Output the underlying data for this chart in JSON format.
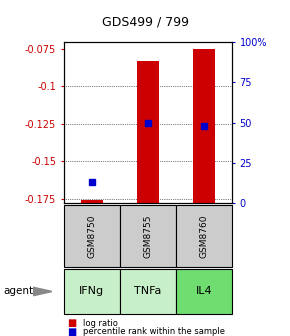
{
  "title": "GDS499 / 799",
  "samples": [
    "GSM8750",
    "GSM8755",
    "GSM8760"
  ],
  "agents": [
    "IFNg",
    "TNFa",
    "IL4"
  ],
  "log_ratios": [
    -0.1755,
    -0.083,
    -0.075
  ],
  "percentile_ranks": [
    13,
    50,
    48
  ],
  "ylim_left": [
    -0.178,
    -0.0705
  ],
  "ylim_right": [
    0,
    100
  ],
  "yticks_left": [
    -0.175,
    -0.15,
    -0.125,
    -0.1,
    -0.075
  ],
  "yticks_right": [
    0,
    25,
    50,
    75,
    100
  ],
  "bar_color": "#cc0000",
  "dot_color": "#0000cc",
  "bar_width": 0.4,
  "sample_box_color": "#cccccc",
  "agent_colors": [
    "#c8f0c8",
    "#c8f0c8",
    "#70dd70"
  ],
  "left_label_color": "#cc0000",
  "right_label_color": "#0000cc",
  "baseline": -0.178,
  "grid_yticks": [
    -0.175,
    -0.15,
    -0.125,
    -0.1
  ],
  "legend_log_ratio": "log ratio",
  "legend_percentile": "percentile rank within the sample"
}
